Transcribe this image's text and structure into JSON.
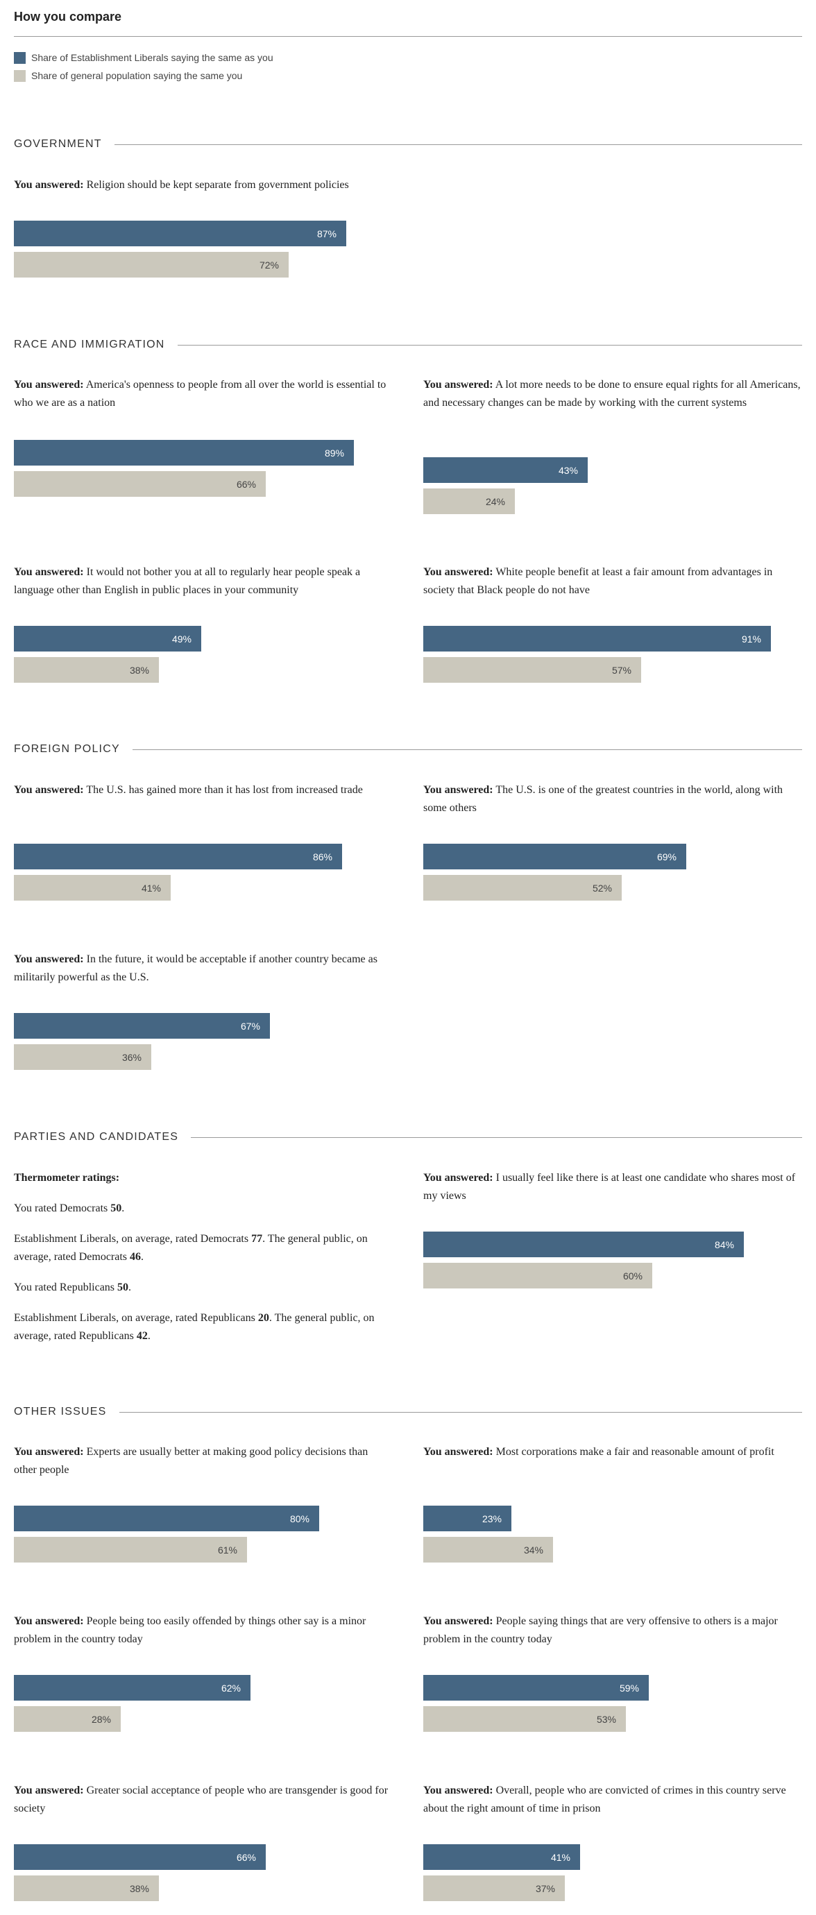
{
  "header": {
    "title": "How you compare"
  },
  "legend": {
    "est_label": "Share of Establishment Liberals saying the same as you",
    "gen_label": "Share of general population saying the same you",
    "est_color": "#456683",
    "gen_color": "#cbc8bc"
  },
  "answer_prefix": "You answered:",
  "sections": {
    "government": "GOVERNMENT",
    "race": "RACE AND IMMIGRATION",
    "foreign": "FOREIGN POLICY",
    "parties": "PARTIES AND CANDIDATES",
    "other": "OTHER ISSUES"
  },
  "questions": [
    {
      "text": "Religion should be kept separate from government policies",
      "est": 87,
      "gen": 72
    },
    {
      "text": "America's openness to people from all over the world is essential to who we are as a nation",
      "est": 89,
      "gen": 66
    },
    {
      "text": "A lot more needs to be done to ensure equal rights for all Americans, and necessary changes can be made by working with the current systems",
      "est": 43,
      "gen": 24
    },
    {
      "text": "It would not bother you at all to regularly hear people speak a language other than English in public places in your community",
      "est": 49,
      "gen": 38
    },
    {
      "text": "White people benefit at least a fair amount from advantages in society that Black people do not have",
      "est": 91,
      "gen": 57
    },
    {
      "text": "The U.S. has gained more than it has lost from increased trade",
      "est": 86,
      "gen": 41
    },
    {
      "text": "The U.S. is one of the greatest countries in the world, along with some others",
      "est": 69,
      "gen": 52
    },
    {
      "text": "In the future, it would be acceptable if another country became as militarily powerful as the U.S.",
      "est": 67,
      "gen": 36
    },
    {
      "text": "I usually feel like there is at least one candidate who shares most of my views",
      "est": 84,
      "gen": 60
    },
    {
      "text": "Experts are usually better at making good policy decisions than other people",
      "est": 80,
      "gen": 61
    },
    {
      "text": "Most corporations make a fair and reasonable amount of profit",
      "est": 23,
      "gen": 34
    },
    {
      "text": "People being too easily offended by things other say is a minor problem in the country today",
      "est": 62,
      "gen": 28
    },
    {
      "text": "People saying things that are very offensive to others is a major problem in the country today",
      "est": 59,
      "gen": 53
    },
    {
      "text": "Greater social acceptance of people who are transgender is good for society",
      "est": 66,
      "gen": 38
    },
    {
      "text": "Overall, people who are convicted of crimes in this country serve about the right amount of time in prison",
      "est": 41,
      "gen": 37
    }
  ],
  "thermometer": {
    "heading": "Thermometer ratings:",
    "dem_you_prefix": "You rated Democrats ",
    "dem_you_value": "50",
    "dem_group_prefix": "Establishment Liberals, on average, rated Democrats ",
    "dem_group_value": "77",
    "dem_gen_prefix": ". The general public, on average, rated Democrats ",
    "dem_gen_value": "46",
    "rep_you_prefix": "You rated Republicans ",
    "rep_you_value": "50",
    "rep_group_prefix": "Establishment Liberals, on average, rated Republicans ",
    "rep_group_value": "20",
    "rep_gen_prefix": ". The general public, on average, rated Republicans ",
    "rep_gen_value": "42",
    "period": "."
  },
  "chart_data": {
    "type": "bar",
    "series": [
      {
        "name": "Share of Establishment Liberals saying the same as you",
        "values": [
          87,
          89,
          43,
          49,
          91,
          86,
          69,
          67,
          84,
          80,
          23,
          62,
          59,
          66,
          41
        ]
      },
      {
        "name": "Share of general population saying the same you",
        "values": [
          72,
          66,
          24,
          38,
          57,
          41,
          52,
          36,
          60,
          61,
          34,
          28,
          53,
          38,
          37
        ]
      }
    ],
    "value_suffix": "%",
    "xlim": [
      0,
      100
    ]
  }
}
